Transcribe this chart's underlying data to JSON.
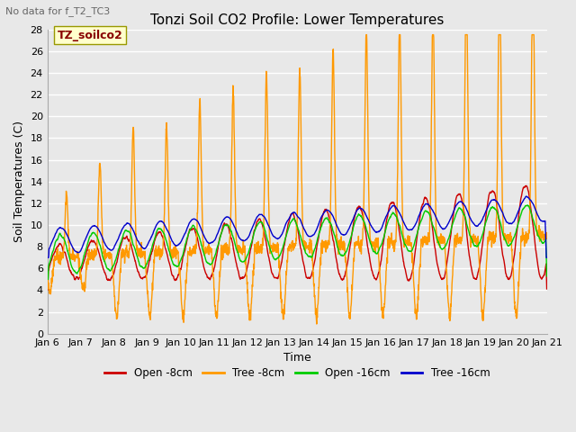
{
  "title": "Tonzi Soil CO2 Profile: Lower Temperatures",
  "subtitle": "No data for f_T2_TC3",
  "xlabel": "Time",
  "ylabel": "Soil Temperatures (C)",
  "legend_label": "TZ_soilco2",
  "series_labels": [
    "Open -8cm",
    "Tree -8cm",
    "Open -16cm",
    "Tree -16cm"
  ],
  "series_colors": [
    "#cc0000",
    "#ff9900",
    "#00cc00",
    "#0000cc"
  ],
  "ylim": [
    0,
    28
  ],
  "background_color": "#e8e8e8",
  "grid_color": "#ffffff",
  "tick_labels": [
    "Jan 6",
    "Jan 7",
    "Jan 8",
    "Jan 9",
    "Jan 10",
    "Jan 11",
    "Jan 12",
    "Jan 13",
    "Jan 14",
    "Jan 15",
    "Jan 16",
    "Jan 17",
    "Jan 18",
    "Jan 19",
    "Jan 20",
    "Jan 21"
  ],
  "figsize": [
    6.4,
    4.8
  ],
  "dpi": 100
}
